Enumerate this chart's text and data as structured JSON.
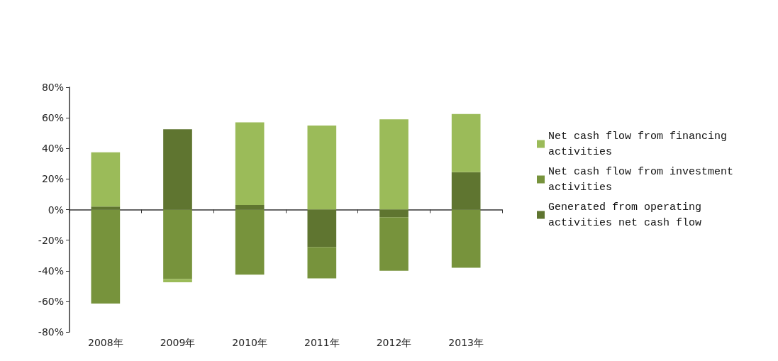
{
  "chart_data": {
    "type": "bar",
    "stacked": true,
    "categories": [
      "2008年",
      "2009年",
      "2010年",
      "2011年",
      "2012年",
      "2013年"
    ],
    "series": [
      {
        "name": "Generated from operating activities net cash flow",
        "color": "#5f7530",
        "values": [
          2,
          52.5,
          3,
          -24.5,
          -5,
          24.5
        ]
      },
      {
        "name": "Net cash flow from investment activities",
        "color": "#77933c",
        "values": [
          -61.5,
          -45.5,
          -42.5,
          -20.5,
          -35,
          -38
        ]
      },
      {
        "name": "Net cash flow from financing activities",
        "color": "#9bbb59",
        "values": [
          35.5,
          -2,
          54,
          55,
          59,
          38
        ]
      }
    ],
    "ylim": [
      -80,
      80
    ],
    "yticks": [
      {
        "value": -80,
        "label": "-80%"
      },
      {
        "value": -60,
        "label": "-60%"
      },
      {
        "value": -40,
        "label": "-40%"
      },
      {
        "value": -20,
        "label": "-20%"
      },
      {
        "value": 0,
        "label": "0%"
      },
      {
        "value": 20,
        "label": "20%"
      },
      {
        "value": 40,
        "label": "40%"
      },
      {
        "value": 60,
        "label": "60%"
      },
      {
        "value": 80,
        "label": "80%"
      }
    ],
    "legend": "right"
  }
}
